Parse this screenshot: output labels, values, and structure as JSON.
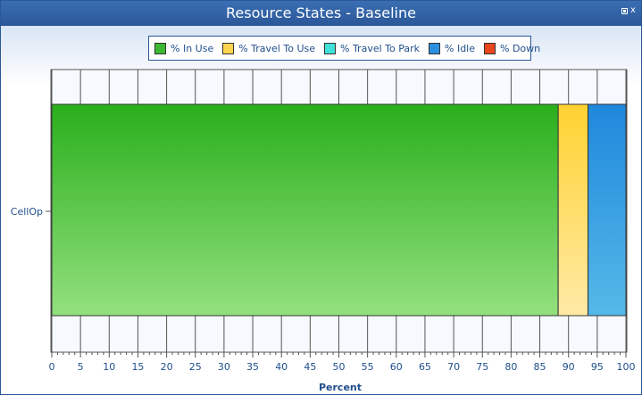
{
  "window": {
    "title": "Resource States - Baseline",
    "close_glyph": "x"
  },
  "legend": {
    "items": [
      {
        "label": "% In Use",
        "color": "#3cb832"
      },
      {
        "label": "% Travel To Use",
        "color": "#ffd54f"
      },
      {
        "label": "% Travel To Park",
        "color": "#40e0d8"
      },
      {
        "label": "% Idle",
        "color": "#2a8fde"
      },
      {
        "label": "% Down",
        "color": "#e8451c"
      }
    ]
  },
  "chart_data": {
    "type": "bar",
    "orientation": "horizontal",
    "stacked": true,
    "categories": [
      "CellOp"
    ],
    "series": [
      {
        "name": "% In Use",
        "values": [
          88.2
        ],
        "color_top": "#2aaf1c",
        "color_bottom": "#93e07e"
      },
      {
        "name": "% Travel To Use",
        "values": [
          5.2
        ],
        "color_top": "#ffd230",
        "color_bottom": "#ffeaa6"
      },
      {
        "name": "% Travel To Park",
        "values": [
          0
        ],
        "color_top": "#40e0d8",
        "color_bottom": "#a0f0ec"
      },
      {
        "name": "% Idle",
        "values": [
          6.6
        ],
        "color_top": "#1f88dc",
        "color_bottom": "#55b9e8"
      },
      {
        "name": "% Down",
        "values": [
          0
        ],
        "color_top": "#e8451c",
        "color_bottom": "#f08a6a"
      }
    ],
    "xlabel": "Percent",
    "xlim": [
      0,
      100
    ],
    "xticks": [
      0,
      5,
      10,
      15,
      20,
      25,
      30,
      35,
      40,
      45,
      50,
      55,
      60,
      65,
      70,
      75,
      80,
      85,
      90,
      95,
      100
    ],
    "grid": true,
    "legend_position": "top-center"
  }
}
